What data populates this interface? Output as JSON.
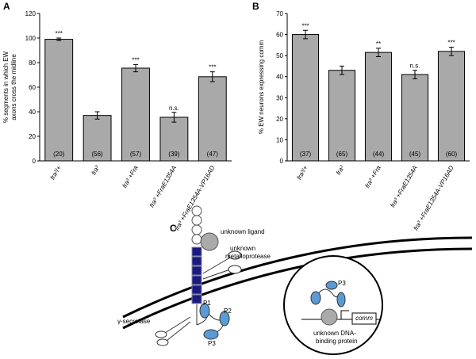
{
  "chart_data": [
    {
      "type": "bar",
      "panel_label": "A",
      "ylabel": [
        "% segments in which EW",
        "axons cross the midline"
      ],
      "categories": [
        "fra³/+",
        "fra³",
        "fra³ +Fra",
        "fra³ +FraE1354A",
        "fra³ +FraE1354A-VP16AD"
      ],
      "values": [
        99,
        37,
        75.5,
        35.5,
        68.5
      ],
      "errors": [
        1,
        3,
        3,
        4,
        4
      ],
      "significance": [
        "***",
        null,
        "***",
        "n.s.",
        "***"
      ],
      "n_labels": [
        "(20)",
        "(56)",
        "(57)",
        "(39)",
        "(47)"
      ],
      "color": "#a9a9a9",
      "ylim": [
        0,
        120
      ],
      "yticks": [
        0,
        20,
        40,
        60,
        80,
        100,
        120
      ]
    },
    {
      "type": "bar",
      "panel_label": "B",
      "ylabel": [
        "% EW neurons expressing comm"
      ],
      "categories": [
        "fra³/+",
        "fra³",
        "fra³ +Fra",
        "fra³ +FraE1354A",
        "fra³ +FraE1354A-VP16AD"
      ],
      "values": [
        60,
        43,
        51.5,
        41,
        52
      ],
      "errors": [
        2,
        2,
        2,
        2,
        2
      ],
      "significance": [
        "***",
        null,
        "**",
        "n.s.",
        "***"
      ],
      "n_labels": [
        "(37)",
        "(65)",
        "(44)",
        "(45)",
        "(60)"
      ],
      "color": "#a9a9a9",
      "ylim": [
        0,
        70
      ],
      "yticks": [
        0,
        10,
        20,
        30,
        40,
        50,
        60,
        70
      ]
    }
  ],
  "panel_c": {
    "panel_label": "C",
    "ligand": "unknown ligand",
    "metalloprotease": [
      "unknown",
      "metalloprotease"
    ],
    "secretase": "γ-secretase",
    "fragments": [
      "P1",
      "P2",
      "P3"
    ],
    "nuclear_fragment": "P3",
    "gene": "comm",
    "dna_binding": [
      "unknown DNA-",
      "binding protein"
    ]
  }
}
